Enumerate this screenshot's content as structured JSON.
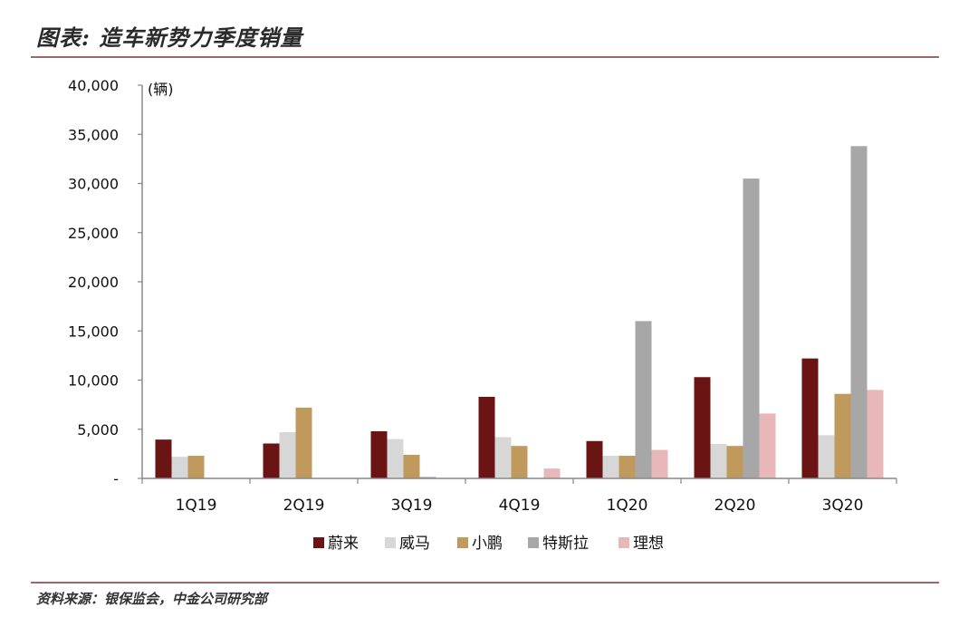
{
  "header": {
    "title": "图表: 造车新势力季度销量"
  },
  "footer": {
    "source": "资料来源：银保监会，中金公司研究部"
  },
  "chart_data": {
    "type": "bar",
    "title": "图表: 造车新势力季度销量",
    "ylabel": "(辆)",
    "xlabel": "",
    "ylim": [
      0,
      40000
    ],
    "yticks": [
      0,
      5000,
      10000,
      15000,
      20000,
      25000,
      30000,
      35000,
      40000
    ],
    "ytick_labels": [
      "-",
      "5,000",
      "10,000",
      "15,000",
      "20,000",
      "25,000",
      "30,000",
      "35,000",
      "40,000"
    ],
    "categories": [
      "1Q19",
      "2Q19",
      "3Q19",
      "4Q19",
      "1Q20",
      "2Q20",
      "3Q20"
    ],
    "legend_position": "bottom",
    "grid": false,
    "series": [
      {
        "name": "蔚来",
        "color": "#6b1414",
        "values": [
          3950,
          3550,
          4800,
          8300,
          3800,
          10300,
          12200
        ]
      },
      {
        "name": "威马",
        "color": "#d7d7d7",
        "values": [
          2200,
          4700,
          4000,
          4200,
          2300,
          3500,
          4400
        ]
      },
      {
        "name": "小鹏",
        "color": "#c09a5c",
        "values": [
          2300,
          7200,
          2400,
          3300,
          2300,
          3300,
          8600
        ]
      },
      {
        "name": "特斯拉",
        "color": "#a7a7a7",
        "values": [
          0,
          0,
          150,
          0,
          16000,
          30500,
          33800
        ]
      },
      {
        "name": "理想",
        "color": "#e8b7b7",
        "values": [
          0,
          0,
          0,
          1000,
          2900,
          6600,
          9000
        ]
      }
    ]
  }
}
